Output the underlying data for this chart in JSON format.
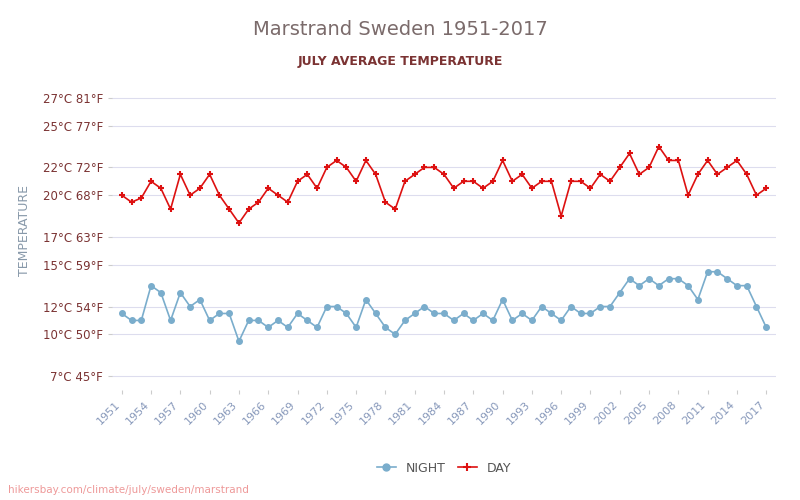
{
  "title": "Marstrand Sweden 1951-2017",
  "subtitle": "JULY AVERAGE TEMPERATURE",
  "xlabel": "",
  "ylabel": "TEMPERATURE",
  "background_color": "#ffffff",
  "title_color": "#7b6b6b",
  "subtitle_color": "#7b3333",
  "ylabel_color": "#8899aa",
  "grid_color": "#ddddee",
  "years": [
    1951,
    1952,
    1953,
    1954,
    1955,
    1956,
    1957,
    1958,
    1959,
    1960,
    1961,
    1962,
    1963,
    1964,
    1965,
    1966,
    1967,
    1968,
    1969,
    1970,
    1971,
    1972,
    1973,
    1974,
    1975,
    1976,
    1977,
    1978,
    1979,
    1980,
    1981,
    1982,
    1983,
    1984,
    1985,
    1986,
    1987,
    1988,
    1989,
    1990,
    1991,
    1992,
    1993,
    1994,
    1995,
    1996,
    1997,
    1998,
    1999,
    2000,
    2001,
    2002,
    2003,
    2004,
    2005,
    2006,
    2007,
    2008,
    2009,
    2010,
    2011,
    2012,
    2013,
    2014,
    2015,
    2016,
    2017
  ],
  "day_temps": [
    20.0,
    19.5,
    19.8,
    21.0,
    20.5,
    19.0,
    21.5,
    20.0,
    20.5,
    21.5,
    20.0,
    19.0,
    18.0,
    19.0,
    19.5,
    20.5,
    20.0,
    19.5,
    21.0,
    21.5,
    20.5,
    22.0,
    22.5,
    22.0,
    21.0,
    22.5,
    21.5,
    19.5,
    19.0,
    21.0,
    21.5,
    22.0,
    22.0,
    21.5,
    20.5,
    21.0,
    21.0,
    20.5,
    21.0,
    22.5,
    21.0,
    21.5,
    20.5,
    21.0,
    21.0,
    18.5,
    21.0,
    21.0,
    20.5,
    21.5,
    21.0,
    22.0,
    23.0,
    21.5,
    22.0,
    23.5,
    22.5,
    22.5,
    20.0,
    21.5,
    22.5,
    21.5,
    22.0,
    22.5,
    21.5,
    20.0,
    20.5
  ],
  "night_temps": [
    11.5,
    11.0,
    11.0,
    13.5,
    13.0,
    11.0,
    13.0,
    12.0,
    12.5,
    11.0,
    11.5,
    11.5,
    9.5,
    11.0,
    11.0,
    10.5,
    11.0,
    10.5,
    11.5,
    11.0,
    10.5,
    12.0,
    12.0,
    11.5,
    10.5,
    12.5,
    11.5,
    10.5,
    10.0,
    11.0,
    11.5,
    12.0,
    11.5,
    11.5,
    11.0,
    11.5,
    11.0,
    11.5,
    11.0,
    12.5,
    11.0,
    11.5,
    11.0,
    12.0,
    11.5,
    11.0,
    12.0,
    11.5,
    11.5,
    12.0,
    12.0,
    13.0,
    14.0,
    13.5,
    14.0,
    13.5,
    14.0,
    14.0,
    13.5,
    12.5,
    14.5,
    14.5,
    14.0,
    13.5,
    13.5,
    12.0,
    10.5
  ],
  "day_color": "#dd1111",
  "night_color": "#7aadcc",
  "yticks_c": [
    7,
    10,
    12,
    15,
    17,
    20,
    22,
    25,
    27
  ],
  "yticks_f": [
    45,
    50,
    54,
    59,
    63,
    68,
    72,
    77,
    81
  ],
  "xtick_years": [
    1951,
    1954,
    1957,
    1960,
    1963,
    1966,
    1969,
    1972,
    1975,
    1978,
    1981,
    1984,
    1987,
    1990,
    1993,
    1996,
    1999,
    2002,
    2005,
    2008,
    2011,
    2014,
    2017
  ],
  "footer_text": "hikersbay.com/climate/july/sweden/marstrand",
  "footer_color": "#ee9999"
}
